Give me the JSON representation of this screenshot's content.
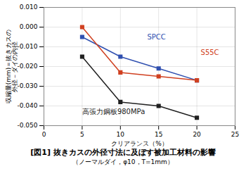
{
  "chart_data": {
    "type": "line",
    "title": "[図1]  抜きカスの外径寸法に及ぼす被加工材料の影響",
    "subtitle": "（ノーマルダイ，φ10，T=1mm）",
    "xlabel": "クリアランス（%）",
    "ylabel": [
      "収縮量(mm)＝抜きカスの",
      "外径－ダイの内径"
    ],
    "x": [
      5,
      10,
      15,
      20
    ],
    "series": [
      {
        "name": "SPCC",
        "color": "#3050b0",
        "marker": "square",
        "values": [
          -0.005,
          -0.015,
          -0.021,
          -0.027
        ]
      },
      {
        "name": "S55C",
        "color": "#d04020",
        "marker": "square",
        "values": [
          0.0,
          -0.023,
          -0.025,
          -0.027
        ]
      },
      {
        "name": "高張力鋼板980MPa",
        "color": "#202020",
        "marker": "square",
        "values": [
          -0.015,
          -0.038,
          -0.04,
          -0.046
        ]
      }
    ],
    "annotations": [
      {
        "text": "SPCC",
        "x": 13.5,
        "y": -0.005,
        "color": "#3050b0"
      },
      {
        "text": "S55C",
        "x": 20.5,
        "y": -0.013,
        "color": "#d04020"
      },
      {
        "text": "高張力鋼板980MPa",
        "x": 5.0,
        "y": -0.043,
        "color": "#202020"
      }
    ],
    "xlim": [
      0,
      25
    ],
    "ylim": [
      -0.05,
      0.01
    ],
    "xticks": [
      0,
      5,
      10,
      15,
      20,
      25
    ],
    "yticks": [
      {
        "value": 0.01,
        "label": "0.010"
      },
      {
        "value": 0.0,
        "label": "0.000"
      },
      {
        "value": -0.01,
        "label": "-0.010"
      },
      {
        "value": -0.02,
        "label": "-0.020"
      },
      {
        "value": -0.03,
        "label": "-0.030"
      },
      {
        "value": -0.04,
        "label": "-0.040"
      },
      {
        "value": -0.05,
        "label": "-0.050"
      }
    ],
    "grid": true
  }
}
